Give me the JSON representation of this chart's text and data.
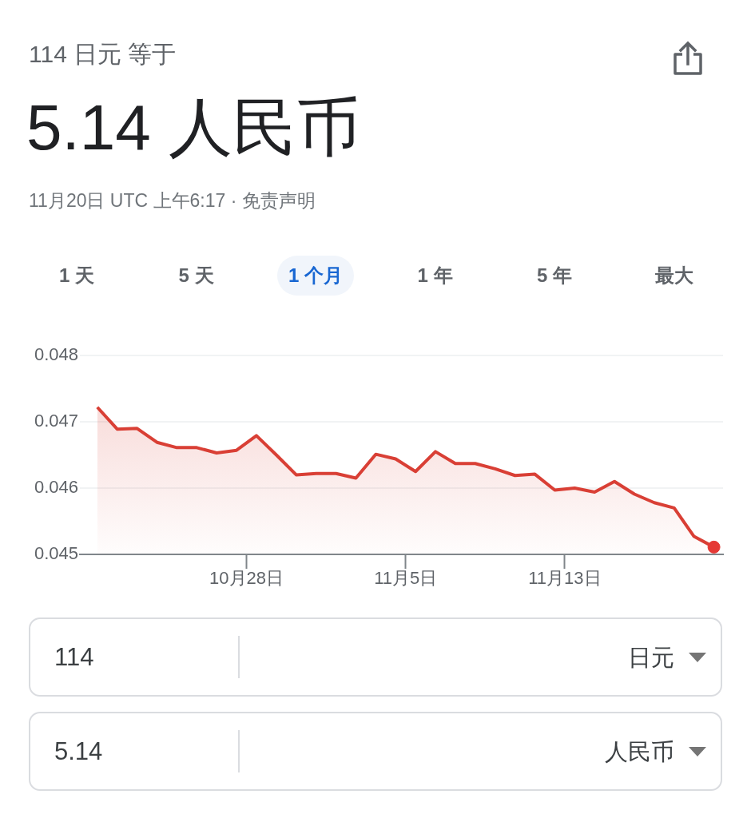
{
  "chart_data": {
    "type": "area",
    "title": "5.14 人民币",
    "subtitle": "114 日元 等于",
    "annotations": [
      "11月20日 UTC 上午6:17 · 免责声明",
      "1 天",
      "5 天",
      "1 个月",
      "1 年",
      "5 年",
      "最大",
      "114",
      "日元",
      "5.14",
      "人民币"
    ],
    "x": [
      "--10-20T12:00",
      "--10-21T12:00",
      "--10-22T12:00",
      "--10-23T12:00",
      "--10-24T12:00",
      "--10-25T12:00",
      "--10-26T12:00",
      "--10-27T12:00",
      "--10-28T12:00",
      "--10-29T12:00",
      "--10-30T12:00",
      "--10-31T12:00",
      "--11-01T12:00",
      "--11-02T12:00",
      "--11-03T12:00",
      "--11-04T12:00",
      "--11-05T12:00",
      "--11-06T12:00",
      "--11-07T12:00",
      "--11-08T12:00",
      "--11-09T12:00",
      "--11-10T12:00",
      "--11-11T12:00",
      "--11-12T12:00",
      "--11-13T12:00",
      "--11-14T12:00",
      "--11-15T12:00",
      "--11-16T12:00",
      "--11-17T12:00",
      "--11-18T12:00",
      "--11-19T12:00",
      "--11-20T12:00"
    ],
    "series": [
      {
        "color": "#d93f35",
        "values": [
          0.04722,
          0.04689,
          0.0469,
          0.04669,
          0.04661,
          0.04661,
          0.04653,
          0.04657,
          0.04679,
          0.0465,
          0.0462,
          0.04622,
          0.04622,
          0.04615,
          0.04651,
          0.04644,
          0.04625,
          0.04655,
          0.04637,
          0.04637,
          0.04629,
          0.04619,
          0.04621,
          0.04597,
          0.046,
          0.04594,
          0.0461,
          0.04591,
          0.04578,
          0.0457,
          0.04527,
          0.04511
        ]
      },
      {
        "type": "scatter",
        "color": "#e53935",
        "marker": "circle",
        "x": [
          "--11-20T12:00"
        ],
        "values": [
          0.04511
        ]
      }
    ],
    "xlim": [
      "--10-19T15:00",
      "--11-20T23:00"
    ],
    "xticks": [
      {
        "value": "--10-28",
        "label": "10月28日"
      },
      {
        "value": "--11-05",
        "label": "11月5日"
      },
      {
        "value": "--11-13",
        "label": "11月13日"
      }
    ],
    "ylim": [
      0.045,
      0.048
    ],
    "yticks": [
      0.045,
      0.046,
      0.047,
      0.048
    ],
    "grid": "y",
    "marker": "none"
  }
}
